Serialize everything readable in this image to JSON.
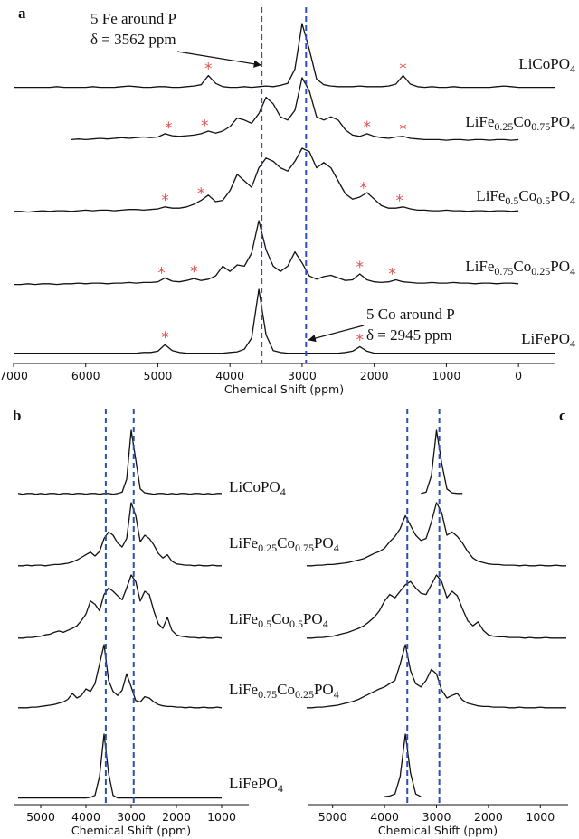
{
  "chart_data": [
    {
      "type": "line",
      "panel_label": "a",
      "xlabel": "Chemical Shift (ppm)",
      "xlim": [
        7000,
        -500
      ],
      "xticks": [
        7000,
        6000,
        5000,
        4000,
        3000,
        2000,
        1000,
        0
      ],
      "vlines": [
        3562,
        2945
      ],
      "marker": "*",
      "annotations": [
        "5 Fe around P",
        "δ = 3562 ppm",
        "5 Co around P",
        "δ = 2945 ppm"
      ],
      "x": [
        7000,
        6900,
        6800,
        6700,
        6600,
        6500,
        6400,
        6300,
        6200,
        6100,
        6000,
        5900,
        5800,
        5700,
        5600,
        5500,
        5400,
        5300,
        5200,
        5100,
        5000,
        4900,
        4800,
        4700,
        4600,
        4500,
        4400,
        4300,
        4200,
        4100,
        4000,
        3900,
        3800,
        3700,
        3600,
        3500,
        3400,
        3300,
        3200,
        3100,
        3000,
        2900,
        2800,
        2700,
        2600,
        2500,
        2400,
        2300,
        2200,
        2100,
        2000,
        1900,
        1800,
        1700,
        1600,
        1500,
        1400,
        1300,
        1200,
        1100,
        1000,
        900,
        800,
        700,
        600,
        500,
        400,
        300,
        200,
        100,
        0,
        -100,
        -200,
        -300,
        -400,
        -500
      ],
      "series": [
        {
          "name": "LiCoPO4",
          "color": "#111111",
          "sideband_x": [
            4300,
            1600
          ],
          "values": [
            2,
            2,
            2,
            2,
            2,
            2,
            3,
            2,
            2,
            2,
            2,
            3,
            2,
            2,
            2,
            3,
            4,
            3,
            2,
            2,
            3,
            3,
            2,
            2,
            3,
            4,
            6,
            20,
            8,
            3,
            2,
            2,
            3,
            2,
            3,
            4,
            3,
            5,
            8,
            30,
            100,
            60,
            15,
            6,
            4,
            3,
            3,
            3,
            4,
            3,
            3,
            3,
            4,
            7,
            20,
            7,
            3,
            2,
            3,
            2,
            2,
            3,
            2,
            2,
            2,
            2,
            2,
            3,
            4,
            3,
            2,
            2,
            2,
            2,
            2,
            2
          ]
        },
        {
          "name": "LiFe0.25Co0.75PO4",
          "color": "#111111",
          "sideband_x": [
            4850,
            4350,
            2100,
            1600
          ],
          "values": [
            null,
            null,
            null,
            null,
            null,
            null,
            null,
            null,
            5,
            6,
            5,
            6,
            7,
            6,
            7,
            8,
            7,
            8,
            9,
            8,
            9,
            14,
            11,
            10,
            11,
            12,
            14,
            18,
            15,
            18,
            25,
            38,
            35,
            30,
            45,
            70,
            60,
            40,
            35,
            50,
            100,
            80,
            40,
            35,
            40,
            35,
            20,
            12,
            10,
            14,
            10,
            8,
            7,
            9,
            10,
            7,
            6,
            5,
            5,
            5,
            4,
            5,
            5,
            4,
            5,
            5,
            4,
            5,
            5,
            4,
            5,
            null,
            null,
            null,
            null,
            null
          ]
        },
        {
          "name": "LiFe0.5Co0.5PO4",
          "color": "#111111",
          "sideband_x": [
            4900,
            4400,
            2150,
            1650
          ],
          "values": [
            3,
            3,
            2,
            3,
            4,
            3,
            4,
            4,
            3,
            4,
            5,
            4,
            5,
            5,
            4,
            5,
            6,
            6,
            5,
            6,
            7,
            10,
            8,
            8,
            10,
            14,
            20,
            28,
            18,
            20,
            35,
            60,
            50,
            40,
            70,
            85,
            80,
            70,
            65,
            80,
            100,
            95,
            70,
            78,
            70,
            50,
            30,
            22,
            25,
            32,
            22,
            12,
            8,
            8,
            10,
            7,
            5,
            5,
            4,
            4,
            5,
            4,
            4,
            3,
            4,
            4,
            3,
            4,
            4,
            3,
            4,
            null,
            null,
            null,
            null,
            null
          ]
        },
        {
          "name": "LiFe0.75Co0.25PO4",
          "color": "#111111",
          "sideband_x": [
            4950,
            4500,
            2200,
            1750
          ],
          "values": [
            2,
            2,
            3,
            2,
            3,
            3,
            2,
            3,
            3,
            4,
            3,
            4,
            4,
            3,
            4,
            4,
            5,
            4,
            5,
            5,
            6,
            12,
            7,
            6,
            8,
            11,
            8,
            10,
            15,
            30,
            22,
            32,
            30,
            50,
            100,
            55,
            30,
            22,
            30,
            52,
            35,
            15,
            10,
            14,
            16,
            12,
            8,
            9,
            18,
            9,
            6,
            5,
            6,
            9,
            6,
            5,
            4,
            4,
            5,
            4,
            4,
            5,
            4,
            4,
            3,
            4,
            4,
            3,
            4,
            4,
            3,
            null,
            null,
            null,
            null,
            null
          ]
        },
        {
          "name": "LiFePO4",
          "color": "#111111",
          "sideband_x": [
            4900,
            2200
          ],
          "values": [
            2,
            2,
            2,
            2,
            2,
            2,
            2,
            2,
            2,
            2,
            2,
            2,
            2,
            2,
            2,
            2,
            2,
            2,
            3,
            3,
            5,
            15,
            6,
            3,
            2,
            2,
            2,
            2,
            2,
            2,
            3,
            4,
            8,
            25,
            100,
            30,
            6,
            3,
            2,
            2,
            2,
            2,
            2,
            2,
            2,
            2,
            3,
            5,
            12,
            5,
            2,
            2,
            2,
            2,
            2,
            2,
            2,
            2,
            2,
            2,
            2,
            2,
            2,
            2,
            2,
            2,
            2,
            2,
            2,
            2,
            2,
            2,
            2,
            2,
            2,
            2
          ]
        }
      ]
    },
    {
      "type": "line",
      "panel_label": "b",
      "xlabel": "Chemical Shift (ppm)",
      "xlim": [
        5500,
        500
      ],
      "xticks": [
        5000,
        4000,
        3000,
        2000,
        1000
      ],
      "vlines": [
        3562,
        2945
      ],
      "x": [
        5500,
        5400,
        5300,
        5200,
        5100,
        5000,
        4900,
        4800,
        4700,
        4600,
        4500,
        4400,
        4300,
        4200,
        4100,
        4000,
        3900,
        3800,
        3700,
        3600,
        3500,
        3400,
        3300,
        3200,
        3100,
        3000,
        2900,
        2800,
        2700,
        2600,
        2500,
        2400,
        2300,
        2200,
        2100,
        2000,
        1900,
        1800,
        1700,
        1600,
        1500,
        1400,
        1300,
        1200,
        1100,
        1000
      ],
      "series": [
        {
          "name": "LiCoPO4",
          "color": "#111111",
          "values": [
            3,
            2,
            3,
            3,
            2,
            3,
            2,
            3,
            3,
            2,
            3,
            3,
            2,
            3,
            3,
            2,
            3,
            3,
            2,
            3,
            3,
            2,
            3,
            5,
            25,
            100,
            55,
            10,
            4,
            3,
            2,
            3,
            3,
            2,
            3,
            2,
            3,
            3,
            2,
            3,
            3,
            2,
            3,
            2,
            3,
            3
          ]
        },
        {
          "name": "LiFe0.25Co0.75PO4",
          "color": "#111111",
          "values": [
            3,
            3,
            4,
            3,
            4,
            4,
            3,
            4,
            5,
            5,
            6,
            7,
            9,
            12,
            16,
            20,
            24,
            18,
            25,
            45,
            55,
            50,
            38,
            32,
            45,
            100,
            80,
            40,
            50,
            45,
            35,
            22,
            15,
            20,
            10,
            6,
            5,
            4,
            4,
            3,
            4,
            3,
            3,
            4,
            3,
            3
          ]
        },
        {
          "name": "LiFe0.5Co0.5PO4",
          "color": "#111111",
          "values": [
            3,
            3,
            4,
            4,
            5,
            6,
            8,
            9,
            12,
            14,
            12,
            15,
            18,
            22,
            30,
            40,
            60,
            55,
            45,
            70,
            80,
            75,
            68,
            62,
            80,
            100,
            90,
            60,
            75,
            70,
            45,
            25,
            18,
            35,
            15,
            8,
            6,
            5,
            4,
            4,
            3,
            4,
            3,
            3,
            4,
            3
          ]
        },
        {
          "name": "LiFe0.75Co0.25PO4",
          "color": "#111111",
          "values": [
            3,
            3,
            3,
            4,
            4,
            5,
            6,
            7,
            8,
            10,
            12,
            16,
            25,
            18,
            22,
            32,
            28,
            40,
            70,
            100,
            45,
            28,
            22,
            30,
            55,
            35,
            14,
            12,
            20,
            18,
            12,
            8,
            6,
            5,
            5,
            4,
            4,
            3,
            4,
            3,
            3,
            4,
            3,
            3,
            4,
            3
          ]
        },
        {
          "name": "LiFePO4",
          "color": "#111111",
          "values": [
            2,
            2,
            2,
            2,
            2,
            2,
            2,
            2,
            2,
            2,
            2,
            2,
            2,
            2,
            2,
            2,
            3,
            6,
            35,
            100,
            40,
            6,
            2,
            2,
            2,
            2,
            2,
            2,
            2,
            2,
            2,
            2,
            2,
            2,
            2,
            2,
            2,
            2,
            2,
            2,
            2,
            2,
            2,
            2,
            2,
            2
          ]
        }
      ]
    },
    {
      "type": "line",
      "panel_label": "c",
      "xlabel": "Chemical Shift (ppm)",
      "xlim": [
        5500,
        500
      ],
      "xticks": [
        5000,
        4000,
        3000,
        2000,
        1000
      ],
      "vlines": [
        3562,
        2945
      ],
      "x": [
        5500,
        5400,
        5300,
        5200,
        5100,
        5000,
        4900,
        4800,
        4700,
        4600,
        4500,
        4400,
        4300,
        4200,
        4100,
        4000,
        3900,
        3800,
        3700,
        3600,
        3500,
        3400,
        3300,
        3200,
        3100,
        3000,
        2900,
        2800,
        2700,
        2600,
        2500,
        2400,
        2300,
        2200,
        2100,
        2000,
        1900,
        1800,
        1700,
        1600,
        1500,
        1400,
        1300,
        1200,
        1100,
        1000,
        900,
        800,
        700,
        600,
        500
      ],
      "series": [
        {
          "color": "#111111",
          "values": [
            null,
            null,
            null,
            null,
            null,
            null,
            null,
            null,
            null,
            null,
            null,
            null,
            null,
            null,
            null,
            null,
            null,
            null,
            null,
            null,
            null,
            null,
            3,
            5,
            30,
            100,
            50,
            10,
            4,
            3,
            3,
            null,
            null,
            null,
            null,
            null,
            null,
            null,
            null,
            null,
            null,
            null,
            null,
            null,
            null,
            null,
            null,
            null,
            null,
            null,
            null
          ]
        },
        {
          "color": "#111111",
          "values": [
            3,
            3,
            4,
            4,
            5,
            5,
            6,
            7,
            8,
            10,
            12,
            14,
            18,
            22,
            25,
            30,
            40,
            48,
            60,
            80,
            65,
            50,
            42,
            45,
            70,
            100,
            85,
            50,
            55,
            48,
            38,
            25,
            15,
            10,
            8,
            6,
            5,
            5,
            4,
            4,
            4,
            3,
            4,
            3,
            3,
            4,
            3,
            3,
            4,
            3,
            3
          ]
        },
        {
          "color": "#111111",
          "values": [
            3,
            3,
            4,
            4,
            5,
            6,
            8,
            10,
            12,
            15,
            18,
            22,
            28,
            35,
            45,
            60,
            70,
            65,
            75,
            85,
            90,
            80,
            72,
            70,
            85,
            100,
            90,
            65,
            75,
            68,
            48,
            30,
            22,
            28,
            15,
            8,
            6,
            5,
            5,
            4,
            4,
            4,
            3,
            4,
            3,
            3,
            4,
            3,
            3,
            3,
            3
          ]
        },
        {
          "color": "#111111",
          "values": [
            3,
            3,
            4,
            4,
            5,
            6,
            7,
            9,
            11,
            13,
            16,
            20,
            24,
            28,
            32,
            35,
            40,
            45,
            70,
            100,
            60,
            40,
            35,
            45,
            62,
            55,
            30,
            18,
            22,
            25,
            15,
            10,
            8,
            6,
            5,
            5,
            4,
            4,
            4,
            3,
            3,
            4,
            3,
            3,
            3,
            4,
            3,
            3,
            3,
            3,
            3
          ]
        },
        {
          "color": "#111111",
          "values": [
            null,
            null,
            null,
            null,
            null,
            null,
            null,
            null,
            null,
            null,
            null,
            null,
            null,
            null,
            null,
            4,
            5,
            8,
            35,
            100,
            40,
            8,
            4,
            null,
            null,
            null,
            null,
            null,
            null,
            null,
            null,
            null,
            null,
            null,
            null,
            null,
            null,
            null,
            null,
            null,
            null,
            null,
            null,
            null,
            null,
            null,
            null,
            null,
            null,
            null,
            null
          ]
        }
      ]
    }
  ]
}
